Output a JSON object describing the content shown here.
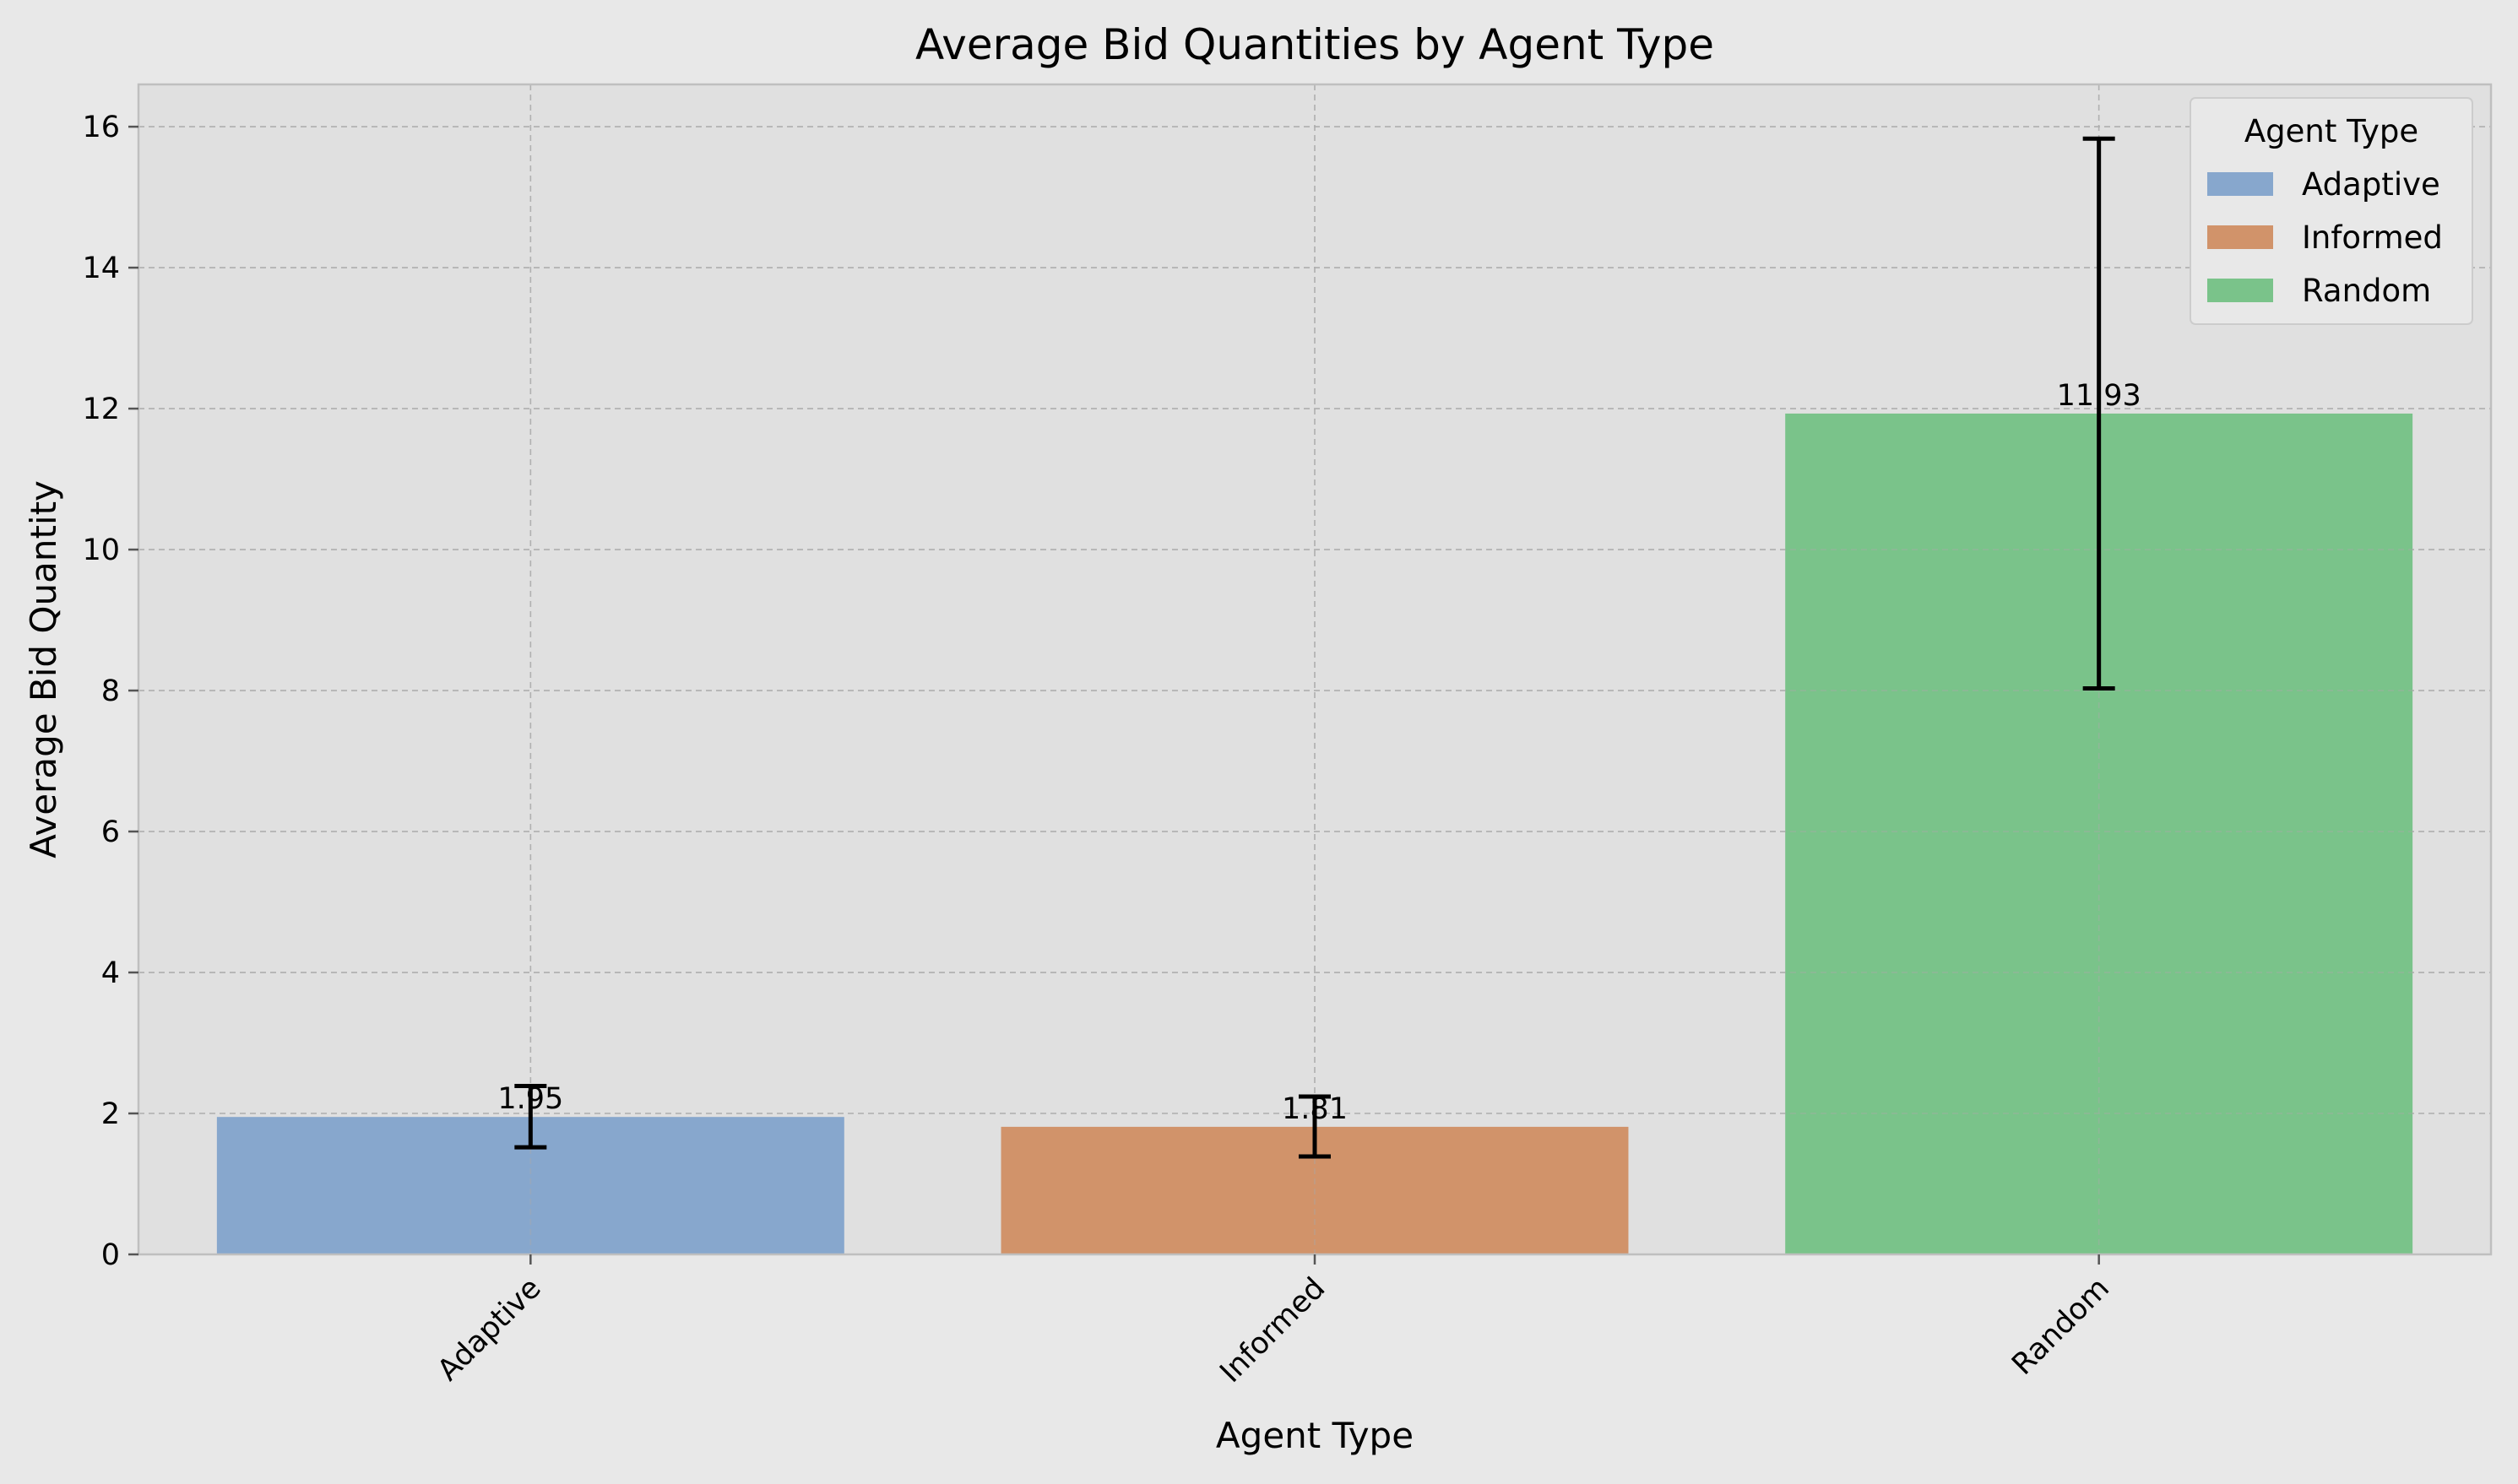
{
  "chart_data": {
    "type": "bar",
    "title": "Average Bid Quantities by Agent Type",
    "xlabel": "Agent Type",
    "ylabel": "Average Bid Quantity",
    "categories": [
      "Adaptive",
      "Informed",
      "Random"
    ],
    "values": [
      1.95,
      1.81,
      11.93
    ],
    "value_labels": [
      "1.95",
      "1.81",
      "11.93"
    ],
    "error_low": [
      1.52,
      1.39,
      8.03
    ],
    "error_high": [
      2.39,
      2.24,
      15.83
    ],
    "colors": [
      "#87a7cd",
      "#d1936a",
      "#7ac38a"
    ],
    "ylim": [
      0,
      16.6
    ],
    "yticks": [
      0,
      2,
      4,
      6,
      8,
      10,
      12,
      14,
      16
    ],
    "ytick_labels": [
      "0",
      "2",
      "4",
      "6",
      "8",
      "10",
      "12",
      "14",
      "16"
    ],
    "grid": true,
    "xtick_rotation": 45,
    "legend": {
      "title": "Agent Type",
      "placement": "top-right",
      "entries": [
        "Adaptive",
        "Informed",
        "Random"
      ]
    },
    "background": "#e0e0e0",
    "figure_background": "#e8e8e8"
  }
}
